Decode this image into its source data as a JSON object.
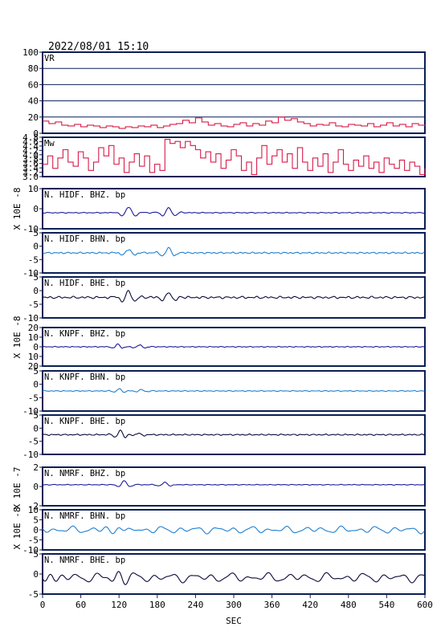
{
  "header": {
    "timestamp": "2022/08/01  15:10"
  },
  "colors": {
    "frame": "#0b1f55",
    "vr_line": "#d81b4a",
    "mw_line": "#d81b4a",
    "dark_blue": "#1a1a9a",
    "light_blue": "#1e7fd0",
    "black_trace": "#0a0a3a"
  },
  "chart_data": {
    "type": "line",
    "xlabel": "SEC",
    "xlim": [
      0,
      600
    ],
    "xticks": [
      "0",
      "60",
      "120",
      "180",
      "240",
      "300",
      "360",
      "420",
      "480",
      "540",
      "600"
    ],
    "panels": [
      {
        "id": "vr",
        "label": "VR",
        "color_key": "vr_line",
        "kind": "step",
        "ylim": [
          0,
          100
        ],
        "yticks": [
          "100",
          "80",
          "60",
          "40",
          "20",
          "0"
        ],
        "gridlines": [
          20,
          40,
          60,
          80
        ],
        "unit": "",
        "x": [
          0,
          10,
          20,
          30,
          40,
          50,
          60,
          70,
          80,
          90,
          100,
          110,
          120,
          130,
          140,
          150,
          160,
          170,
          180,
          190,
          200,
          210,
          220,
          230,
          240,
          250,
          260,
          270,
          280,
          290,
          300,
          310,
          320,
          330,
          340,
          350,
          360,
          370,
          380,
          390,
          400,
          410,
          420,
          430,
          440,
          450,
          460,
          470,
          480,
          490,
          500,
          510,
          520,
          530,
          540,
          550,
          560,
          570,
          580,
          590,
          600
        ],
        "values": [
          15,
          12,
          14,
          10,
          9,
          11,
          8,
          10,
          9,
          7,
          9,
          8,
          6,
          8,
          7,
          9,
          8,
          10,
          7,
          9,
          11,
          12,
          16,
          13,
          19,
          14,
          10,
          12,
          9,
          8,
          11,
          13,
          9,
          12,
          10,
          15,
          13,
          20,
          16,
          18,
          14,
          12,
          9,
          11,
          10,
          13,
          9,
          8,
          11,
          10,
          9,
          12,
          8,
          10,
          13,
          9,
          11,
          8,
          12,
          10,
          9
        ]
      },
      {
        "id": "mw",
        "label": "Mw",
        "color_key": "mw_line",
        "kind": "step",
        "ylim": [
          2.9,
          4.8
        ],
        "yticks": [
          "4.8",
          "4.6",
          "4.4",
          "4.2",
          "4.0",
          "3.8",
          "3.6",
          "3.4",
          "3.2",
          "3.0"
        ],
        "unit": "",
        "x": [
          0,
          8,
          16,
          24,
          32,
          40,
          48,
          56,
          64,
          72,
          80,
          88,
          96,
          104,
          112,
          120,
          128,
          136,
          144,
          152,
          160,
          168,
          176,
          184,
          192,
          200,
          208,
          216,
          224,
          232,
          240,
          248,
          256,
          264,
          272,
          280,
          288,
          296,
          304,
          312,
          320,
          328,
          336,
          344,
          352,
          360,
          368,
          376,
          384,
          392,
          400,
          408,
          416,
          424,
          432,
          440,
          448,
          456,
          464,
          472,
          480,
          488,
          496,
          504,
          512,
          520,
          528,
          536,
          544,
          552,
          560,
          568,
          576,
          584,
          592,
          600
        ],
        "values": [
          3.5,
          3.9,
          3.3,
          3.8,
          4.2,
          3.6,
          3.4,
          4.1,
          3.8,
          3.2,
          3.6,
          4.3,
          3.9,
          4.4,
          3.5,
          3.8,
          3.1,
          3.6,
          4.0,
          3.4,
          3.9,
          3.1,
          3.5,
          3.2,
          4.7,
          4.5,
          4.6,
          4.3,
          4.6,
          4.4,
          4.2,
          3.8,
          4.1,
          3.6,
          4.0,
          3.3,
          3.7,
          4.2,
          3.9,
          3.2,
          3.6,
          3.0,
          3.8,
          4.4,
          3.5,
          3.9,
          4.2,
          3.6,
          4.0,
          3.3,
          4.3,
          3.6,
          3.2,
          3.8,
          3.4,
          4.0,
          3.1,
          3.6,
          4.2,
          3.5,
          3.2,
          3.7,
          3.4,
          3.9,
          3.3,
          3.6,
          3.1,
          3.8,
          3.5,
          3.3,
          3.7,
          3.2,
          3.6,
          3.4,
          3.0,
          3.3
        ]
      },
      {
        "id": "hidf_bhz",
        "label": "N. HIDF. BHZ. bp",
        "color_key": "dark_blue",
        "kind": "wave",
        "ylim": [
          -10,
          15
        ],
        "yticks": [
          "10",
          "0",
          "-10"
        ],
        "unit": "X 10E -8",
        "background_amp": 0.25,
        "background_period": 11,
        "events": [
          {
            "t": 135,
            "amp": 3.5,
            "period": 24,
            "width": 14
          },
          {
            "t": 198,
            "amp": 3,
            "period": 22,
            "width": 14
          }
        ]
      },
      {
        "id": "hidf_bhn",
        "label": "N. HIDF. BHN. bp",
        "color_key": "light_blue",
        "kind": "wave",
        "ylim": [
          -10,
          10
        ],
        "yticks": [
          "5",
          "0",
          "-5",
          "-10"
        ],
        "unit": "X 10E -8",
        "background_amp": 0.35,
        "background_period": 10,
        "events": [
          {
            "t": 135,
            "amp": 1.8,
            "period": 22,
            "width": 14
          },
          {
            "t": 198,
            "amp": 2.5,
            "period": 22,
            "width": 14
          }
        ]
      },
      {
        "id": "hidf_bhe",
        "label": "N. HIDF. BHE. bp",
        "color_key": "black_trace",
        "kind": "wave",
        "ylim": [
          -10,
          10
        ],
        "yticks": [
          "5",
          "0",
          "-5",
          "-10"
        ],
        "unit": "X 10E -8",
        "background_amp": 0.5,
        "background_period": 12,
        "events": [
          {
            "t": 135,
            "amp": 3.2,
            "period": 22,
            "width": 15
          },
          {
            "t": 198,
            "amp": 2.6,
            "period": 22,
            "width": 14
          }
        ]
      },
      {
        "id": "knpf_bhz",
        "label": "N. KNPF. BHZ. bp",
        "color_key": "dark_blue",
        "kind": "wave",
        "ylim": [
          -20,
          20
        ],
        "yticks": [
          "20",
          "10",
          "0",
          "10",
          "20"
        ],
        "unit": "X 10E -8",
        "background_amp": 0.4,
        "background_period": 9,
        "events": [
          {
            "t": 118,
            "amp": 3,
            "period": 18,
            "width": 10
          },
          {
            "t": 152,
            "amp": 2,
            "period": 20,
            "width": 12
          }
        ]
      },
      {
        "id": "knpf_bhn",
        "label": "N. KNPF. BHN. bp",
        "color_key": "light_blue",
        "kind": "wave",
        "ylim": [
          -10,
          10
        ],
        "yticks": [
          "5",
          "0",
          "-5",
          "-10"
        ],
        "unit": "X 10E -8",
        "background_amp": 0.2,
        "background_period": 10,
        "events": [
          {
            "t": 120,
            "amp": 1.1,
            "period": 18,
            "width": 10
          },
          {
            "t": 155,
            "amp": 0.6,
            "period": 20,
            "width": 12
          }
        ]
      },
      {
        "id": "knpf_bhe",
        "label": "N. KNPF. BHE. bp",
        "color_key": "black_trace",
        "kind": "wave",
        "ylim": [
          -10,
          10
        ],
        "yticks": [
          "5",
          "0",
          "-5",
          "-10"
        ],
        "unit": "X 10E -8",
        "background_amp": 0.3,
        "background_period": 10,
        "events": [
          {
            "t": 122,
            "amp": 2.2,
            "period": 18,
            "width": 11
          },
          {
            "t": 150,
            "amp": 0.8,
            "period": 20,
            "width": 12
          }
        ]
      },
      {
        "id": "nmrf_bhz",
        "label": "N. NMRF. BHZ. bp",
        "color_key": "dark_blue",
        "kind": "wave",
        "ylim": [
          -3,
          2.5
        ],
        "yticks": [
          "2",
          "0",
          "-2"
        ],
        "unit": "X 10E -7",
        "background_amp": 0.05,
        "background_period": 11,
        "events": [
          {
            "t": 128,
            "amp": 0.55,
            "period": 22,
            "width": 12
          },
          {
            "t": 192,
            "amp": 0.35,
            "period": 22,
            "width": 12
          }
        ]
      },
      {
        "id": "nmrf_bhn",
        "label": "N. NMRF. BHN. bp",
        "color_key": "light_blue",
        "kind": "wave",
        "ylim": [
          -10,
          10
        ],
        "yticks": [
          "10",
          "5",
          "0",
          "-5",
          "-10"
        ],
        "unit": "X 10E -8",
        "background_amp": 1.6,
        "background_period": 28,
        "events": [
          {
            "t": 120,
            "amp": 2.5,
            "period": 24,
            "width": 16
          }
        ]
      },
      {
        "id": "nmrf_bhe",
        "label": "N. NMRF. BHE. bp",
        "color_key": "black_trace",
        "kind": "wave",
        "ylim": [
          -7,
          10
        ],
        "yticks": [
          "5",
          "0",
          "-5"
        ],
        "unit": "X 10E -8",
        "background_amp": 1.8,
        "background_period": 30,
        "events": [
          {
            "t": 12,
            "amp": 2.5,
            "period": 24,
            "width": 14
          },
          {
            "t": 120,
            "amp": 2.2,
            "period": 24,
            "width": 16
          }
        ]
      }
    ]
  }
}
